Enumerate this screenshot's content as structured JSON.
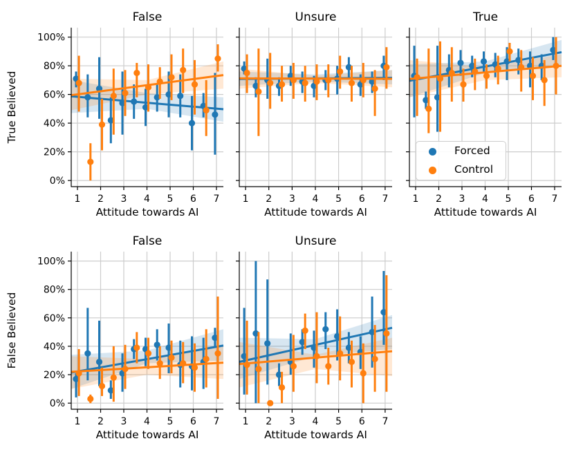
{
  "figure": {
    "colors": {
      "forced": "#1f77b4",
      "control": "#ff7f0e",
      "grid": "#cccccc",
      "spine": "#000000",
      "band_alpha": 0.18,
      "background": "#ffffff"
    },
    "legend": {
      "items": [
        {
          "label": "Forced",
          "color_key": "forced",
          "icon": "legend-dot-forced"
        },
        {
          "label": "Control",
          "color_key": "control",
          "icon": "legend-dot-control"
        }
      ]
    },
    "axes": {
      "xlabel": "Attitude towards AI",
      "xticks": [
        1,
        2,
        3,
        4,
        5,
        6,
        7
      ],
      "ytick_values": [
        0,
        20,
        40,
        60,
        80,
        100
      ],
      "ytick_labels": [
        "0%",
        "20%",
        "40%",
        "60%",
        "80%",
        "100%"
      ],
      "xlim": [
        0.73,
        7.3
      ],
      "ylim": [
        -4.3,
        106.6
      ],
      "row_ylabels": [
        "True Believed",
        "False Believed"
      ]
    }
  },
  "chart_data": [
    {
      "type": "scatter",
      "title": "False",
      "row": 0,
      "col": 0,
      "ylabel": "True Believed",
      "xlabel": "Attitude towards AI",
      "x": [
        1,
        1.5,
        2,
        2.5,
        3,
        3.5,
        4,
        4.5,
        5,
        5.5,
        6,
        6.5,
        7
      ],
      "series": [
        {
          "name": "Forced",
          "y": [
            71,
            58,
            64,
            42,
            54,
            55,
            51,
            58,
            60,
            59,
            40,
            52,
            46
          ],
          "lo": [
            65,
            44,
            43,
            26,
            32,
            43,
            38,
            48,
            44,
            44,
            21,
            44,
            18
          ],
          "hi": [
            76,
            74,
            86,
            58,
            76,
            67,
            64,
            68,
            76,
            74,
            59,
            61,
            75
          ],
          "fit": {
            "y_start": 58.7,
            "y_end": 49.7
          },
          "band": {
            "lo": [
              47,
              50,
              41
            ],
            "hi": [
              70,
              61,
              58
            ]
          }
        },
        {
          "name": "Control",
          "y": [
            68,
            13,
            39,
            59,
            61,
            75,
            65,
            69,
            72,
            77,
            67,
            49,
            85
          ],
          "lo": [
            48,
            0,
            21,
            32,
            45,
            58,
            48,
            57,
            56,
            61,
            46,
            31,
            76
          ],
          "hi": [
            87,
            26,
            57,
            78,
            77,
            82,
            81,
            79,
            88,
            92,
            84,
            70,
            95
          ],
          "fit": {
            "y_start": 59.5,
            "y_end": 73.5
          },
          "band": {
            "lo": [
              49,
              60,
              64
            ],
            "hi": [
              71,
              70,
              83
            ]
          }
        }
      ]
    },
    {
      "type": "scatter",
      "title": "Unsure",
      "row": 0,
      "col": 1,
      "ylabel": "",
      "xlabel": "Attitude towards AI",
      "x": [
        1,
        1.5,
        2,
        2.5,
        3,
        3.5,
        4,
        4.5,
        5,
        5.5,
        6,
        6.5,
        7
      ],
      "series": [
        {
          "name": "Forced",
          "y": [
            78,
            66,
            70,
            66,
            73,
            69,
            66,
            70,
            71,
            79,
            67,
            69,
            80
          ],
          "lo": [
            74,
            58,
            57,
            59,
            66,
            61,
            58,
            63,
            60,
            71,
            59,
            61,
            70
          ],
          "hi": [
            83,
            72,
            85,
            72,
            80,
            76,
            73,
            77,
            80,
            86,
            74,
            76,
            87
          ],
          "fit": {
            "y_start": 70.8,
            "y_end": 71.6
          },
          "band": {
            "lo": [
              66,
              69,
              67
            ],
            "hi": [
              76,
              74,
              77
            ]
          }
        },
        {
          "name": "Control",
          "y": [
            75,
            62,
            68,
            67,
            70,
            68,
            69,
            70,
            76,
            68,
            70,
            64,
            79
          ],
          "lo": [
            61,
            31,
            50,
            55,
            57,
            55,
            56,
            58,
            64,
            55,
            58,
            45,
            64
          ],
          "hi": [
            88,
            92,
            89,
            80,
            82,
            80,
            81,
            81,
            87,
            80,
            82,
            77,
            93
          ],
          "fit": {
            "y_start": 71.2,
            "y_end": 70.9
          },
          "band": {
            "lo": [
              64,
              68,
              65
            ],
            "hi": [
              78,
              73,
              77
            ]
          }
        }
      ]
    },
    {
      "type": "scatter",
      "title": "True",
      "row": 0,
      "col": 2,
      "ylabel": "",
      "xlabel": "Attitude towards AI",
      "x": [
        1,
        1.5,
        2,
        2.5,
        3,
        3.5,
        4,
        4.5,
        5,
        5.5,
        6,
        6.5,
        7
      ],
      "series": [
        {
          "name": "Forced",
          "y": [
            73,
            56,
            58,
            77,
            82,
            80,
            83,
            81,
            83,
            84,
            80,
            80,
            91
          ],
          "lo": [
            44,
            50,
            34,
            65,
            73,
            72,
            75,
            72,
            70,
            74,
            65,
            70,
            84
          ],
          "hi": [
            94,
            62,
            94,
            88,
            91,
            87,
            90,
            89,
            93,
            92,
            90,
            88,
            100
          ],
          "fit": {
            "y_start": 69.5,
            "y_end": 89.5
          },
          "band": {
            "lo": [
              58,
              75,
              80
            ],
            "hi": [
              81,
              83,
              98
            ]
          }
        },
        {
          "name": "Control",
          "y": [
            72,
            50,
            71,
            75,
            67,
            76,
            73,
            78,
            90,
            79,
            73,
            70,
            80
          ],
          "lo": [
            45,
            33,
            34,
            55,
            55,
            63,
            64,
            67,
            83,
            62,
            56,
            52,
            60
          ],
          "hi": [
            85,
            92,
            97,
            93,
            78,
            85,
            81,
            87,
            96,
            91,
            86,
            84,
            100
          ],
          "fit": {
            "y_start": 70.8,
            "y_end": 80.0
          },
          "band": {
            "lo": [
              58,
              70,
              72
            ],
            "hi": [
              84,
              79,
              88
            ]
          }
        }
      ]
    },
    {
      "type": "scatter",
      "title": "False",
      "row": 1,
      "col": 0,
      "ylabel": "False Believed",
      "xlabel": "Attitude towards AI",
      "x": [
        1,
        1.5,
        2,
        2.5,
        3,
        3.5,
        4,
        4.5,
        5,
        5.5,
        6,
        6.5,
        7
      ],
      "series": [
        {
          "name": "Forced",
          "y": [
            17,
            35,
            29,
            9,
            21,
            38,
            38,
            41,
            39,
            27,
            26,
            29,
            46
          ],
          "lo": [
            4,
            16,
            12,
            3,
            8,
            31,
            26,
            30,
            21,
            11,
            9,
            10,
            39
          ],
          "hi": [
            21,
            67,
            58,
            16,
            35,
            45,
            46,
            52,
            56,
            44,
            47,
            46,
            53
          ],
          "fit": {
            "y_start": 21.5,
            "y_end": 40.5
          },
          "band": {
            "lo": [
              10,
              28,
              30
            ],
            "hi": [
              34,
              37,
              52
            ]
          }
        },
        {
          "name": "Control",
          "y": [
            21,
            3,
            12,
            18,
            24,
            39,
            35,
            28,
            32,
            28,
            25,
            31,
            35
          ],
          "lo": [
            5,
            0,
            5,
            1,
            10,
            28,
            24,
            17,
            21,
            14,
            8,
            11,
            3
          ],
          "hi": [
            38,
            6,
            25,
            40,
            41,
            50,
            46,
            40,
            44,
            43,
            42,
            52,
            75
          ],
          "fit": {
            "y_start": 22.0,
            "y_end": 28.5
          },
          "band": {
            "lo": [
              10,
              20,
              17
            ],
            "hi": [
              33,
              31,
              40
            ]
          }
        }
      ]
    },
    {
      "type": "scatter",
      "title": "Unsure",
      "row": 1,
      "col": 1,
      "ylabel": "",
      "xlabel": "Attitude towards AI",
      "x": [
        1,
        1.5,
        2,
        2.5,
        3,
        3.5,
        4,
        4.5,
        5,
        5.5,
        6,
        6.5,
        7
      ],
      "series": [
        {
          "name": "Forced",
          "y": [
            33,
            49,
            42,
            20,
            29,
            43,
            39,
            52,
            47,
            39,
            36,
            50,
            64
          ],
          "lo": [
            6,
            0,
            13,
            12,
            20,
            34,
            25,
            38,
            30,
            28,
            24,
            25,
            41
          ],
          "hi": [
            67,
            100,
            87,
            28,
            49,
            52,
            51,
            64,
            66,
            50,
            47,
            75,
            93
          ],
          "fit": {
            "y_start": 29.0,
            "y_end": 53.0
          },
          "band": {
            "lo": [
              17,
              33,
              38
            ],
            "hi": [
              46,
              45,
              62
            ]
          }
        },
        {
          "name": "Control",
          "y": [
            27,
            24,
            0,
            11,
            26,
            51,
            33,
            26,
            35,
            29,
            21,
            31,
            49
          ],
          "lo": [
            6,
            0,
            0,
            0,
            8,
            38,
            14,
            13,
            16,
            11,
            0,
            8,
            8
          ],
          "hi": [
            58,
            50,
            0,
            22,
            48,
            63,
            64,
            39,
            61,
            44,
            42,
            55,
            90
          ],
          "fit": {
            "y_start": 27.5,
            "y_end": 36.5
          },
          "band": {
            "lo": [
              11,
              24,
              19
            ],
            "hi": [
              43,
              34,
              46
            ]
          }
        }
      ]
    }
  ]
}
